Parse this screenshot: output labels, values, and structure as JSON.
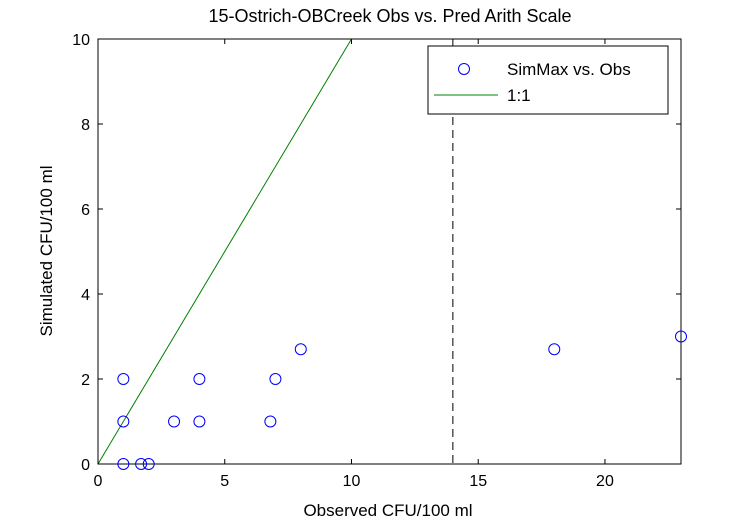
{
  "chart_data": {
    "type": "scatter",
    "title": "15-Ostrich-OBCreek Obs vs. Pred Arith Scale",
    "xlabel": "Observed CFU/100 ml",
    "ylabel": "Simulated CFU/100 ml",
    "xlim": [
      0,
      23
    ],
    "ylim": [
      0,
      10
    ],
    "xticks": [
      0,
      5,
      10,
      15,
      20
    ],
    "yticks": [
      0,
      2,
      4,
      6,
      8,
      10
    ],
    "grid": false,
    "legend_position": "top-right",
    "series": [
      {
        "name": "SimMax vs. Obs",
        "type": "scatter",
        "marker": "circle",
        "color": "#0000ff",
        "points": [
          {
            "x": 1,
            "y": 2
          },
          {
            "x": 1,
            "y": 1
          },
          {
            "x": 1,
            "y": 0
          },
          {
            "x": 1.7,
            "y": 0
          },
          {
            "x": 2,
            "y": 0
          },
          {
            "x": 3,
            "y": 1
          },
          {
            "x": 4,
            "y": 2
          },
          {
            "x": 4,
            "y": 1
          },
          {
            "x": 6.8,
            "y": 1
          },
          {
            "x": 7,
            "y": 2
          },
          {
            "x": 8,
            "y": 2.7
          },
          {
            "x": 18,
            "y": 2.7
          },
          {
            "x": 23,
            "y": 3
          }
        ]
      },
      {
        "name": "1:1",
        "type": "line",
        "color": "#008000",
        "points": [
          {
            "x": 0,
            "y": 0
          },
          {
            "x": 10,
            "y": 10
          }
        ]
      }
    ],
    "reference_lines": [
      {
        "orientation": "vertical",
        "x": 14,
        "style": "dashed",
        "color": "#000000"
      }
    ]
  }
}
